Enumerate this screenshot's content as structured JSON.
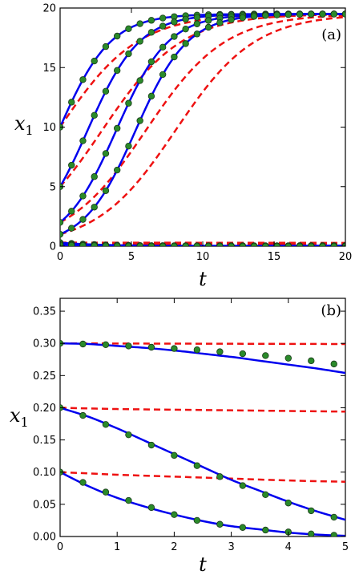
{
  "chart_data": [
    {
      "type": "line",
      "panel_label": "(a)",
      "xlabel": "t",
      "ylabel": "x",
      "ylabel_subscript": "1",
      "xlim": [
        0,
        20
      ],
      "ylim": [
        0,
        20
      ],
      "xticks": [
        0,
        5,
        10,
        15,
        20
      ],
      "yticks": [
        0,
        5,
        10,
        15,
        20
      ],
      "xtick_labels": [
        "0",
        "5",
        "10",
        "15",
        "20"
      ],
      "ytick_labels": [
        "0",
        "5",
        "10",
        "15",
        "20"
      ],
      "grid": false,
      "colors": {
        "solid": "#0000ee",
        "dashed": "#ee1111",
        "markers": "#2a8a2a",
        "marker_edge": "#1a3a1a"
      },
      "logistic_curves": [
        {
          "x0": 10,
          "K": 19.5,
          "r_solid": 0.55,
          "r_dashed": 0.36
        },
        {
          "x0": 5,
          "K": 19.5,
          "r_solid": 0.55,
          "r_dashed": 0.36
        },
        {
          "x0": 2,
          "K": 19.5,
          "r_solid": 0.55,
          "r_dashed": 0.36
        },
        {
          "x0": 1,
          "K": 19.5,
          "r_solid": 0.55,
          "r_dashed": 0.36
        }
      ],
      "decay_curves": [
        {
          "x0": 0.3,
          "y_end_solid": 0.05,
          "y_end_dashed": 0.28
        },
        {
          "x0": 0.2,
          "y_end_solid": 0.0,
          "y_end_dashed": 0.19
        },
        {
          "x0": 0.1,
          "y_end_solid": 0.0,
          "y_end_dashed": 0.08
        }
      ],
      "marker_step": 0.8
    },
    {
      "type": "line",
      "panel_label": "(b)",
      "xlabel": "t",
      "ylabel": "x",
      "ylabel_subscript": "1",
      "xlim": [
        0,
        5
      ],
      "ylim": [
        0,
        0.37
      ],
      "xticks": [
        0,
        1,
        2,
        3,
        4,
        5
      ],
      "yticks": [
        0,
        0.05,
        0.1,
        0.15,
        0.2,
        0.25,
        0.3,
        0.35
      ],
      "xtick_labels": [
        "0",
        "1",
        "2",
        "3",
        "4",
        "5"
      ],
      "ytick_labels": [
        "0.00",
        "0.05",
        "0.10",
        "0.15",
        "0.20",
        "0.25",
        "0.30",
        "0.35"
      ],
      "grid": false,
      "colors": {
        "solid": "#0000ee",
        "dashed": "#ee1111",
        "markers": "#2a8a2a",
        "marker_edge": "#1a3a1a"
      },
      "solid_series": [
        {
          "x": [
            0,
            0.5,
            1,
            1.5,
            2,
            2.5,
            3,
            3.5,
            4,
            4.5,
            5
          ],
          "y": [
            0.3,
            0.299,
            0.296,
            0.293,
            0.289,
            0.284,
            0.279,
            0.273,
            0.267,
            0.261,
            0.254
          ]
        },
        {
          "x": [
            0,
            0.5,
            1,
            1.5,
            2,
            2.5,
            3,
            3.5,
            4,
            4.5,
            5
          ],
          "y": [
            0.2,
            0.186,
            0.168,
            0.148,
            0.128,
            0.108,
            0.088,
            0.071,
            0.054,
            0.039,
            0.026
          ]
        },
        {
          "x": [
            0,
            0.5,
            1,
            1.5,
            2,
            2.5,
            3,
            3.5,
            4,
            4.5,
            5
          ],
          "y": [
            0.1,
            0.078,
            0.06,
            0.046,
            0.034,
            0.024,
            0.016,
            0.011,
            0.006,
            0.003,
            0.001
          ]
        }
      ],
      "dashed_series": [
        {
          "x": [
            0,
            5
          ],
          "y": [
            0.3,
            0.299
          ]
        },
        {
          "x": [
            0,
            1,
            2,
            3,
            4,
            5
          ],
          "y": [
            0.2,
            0.198,
            0.197,
            0.196,
            0.195,
            0.194
          ]
        },
        {
          "x": [
            0,
            1,
            2,
            3,
            4,
            5
          ],
          "y": [
            0.1,
            0.096,
            0.093,
            0.09,
            0.087,
            0.085
          ]
        }
      ],
      "marker_series": [
        {
          "x": [
            0,
            0.4,
            0.8,
            1.2,
            1.6,
            2.0,
            2.4,
            2.8,
            3.2,
            3.6,
            4.0,
            4.4,
            4.8
          ],
          "y": [
            0.3,
            0.299,
            0.298,
            0.296,
            0.294,
            0.292,
            0.29,
            0.287,
            0.284,
            0.281,
            0.277,
            0.273,
            0.268
          ]
        },
        {
          "x": [
            0,
            0.4,
            0.8,
            1.2,
            1.6,
            2.0,
            2.4,
            2.8,
            3.2,
            3.6,
            4.0,
            4.4,
            4.8
          ],
          "y": [
            0.2,
            0.188,
            0.174,
            0.158,
            0.142,
            0.126,
            0.11,
            0.093,
            0.079,
            0.065,
            0.052,
            0.04,
            0.03
          ]
        },
        {
          "x": [
            0,
            0.4,
            0.8,
            1.2,
            1.6,
            2.0,
            2.4,
            2.8,
            3.2,
            3.6,
            4.0,
            4.4,
            4.8
          ],
          "y": [
            0.1,
            0.084,
            0.069,
            0.056,
            0.045,
            0.034,
            0.025,
            0.019,
            0.014,
            0.01,
            0.007,
            0.004,
            0.002
          ]
        }
      ]
    }
  ]
}
